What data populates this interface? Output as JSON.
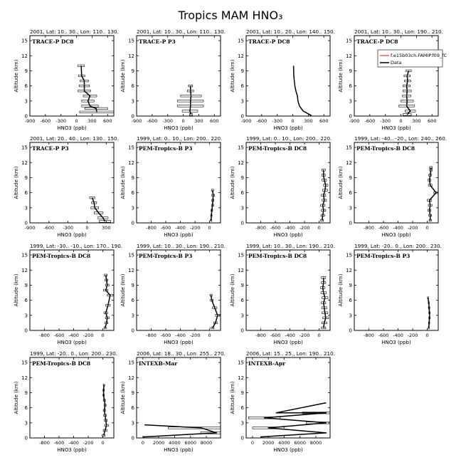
{
  "figure": {
    "title": "Tropics MAM HNO₃"
  },
  "legend": {
    "model_label": "f.e15b03ch.FAMIP.f09_fC",
    "data_label": "Data",
    "model_color": "#ff0000",
    "data_color": "#000000"
  },
  "chart_data": [
    {
      "type": "line",
      "header": "2001, Lat: 10.. 30., Lon: 110.. 130.",
      "campaign": "TRACE-P DC8",
      "xlabel": "HNO3 (ppb)",
      "ylabel": "Altitude (km)",
      "xlim": [
        -900,
        720
      ],
      "ylim": [
        0,
        16
      ],
      "xticks": [
        -900,
        -600,
        -300,
        0,
        300,
        600
      ],
      "yticks": [
        0,
        3,
        6,
        9,
        12,
        15
      ],
      "series": [
        {
          "name": "Data",
          "x": [
            390,
            380,
            260,
            220,
            260,
            150,
            150,
            150,
            100,
            90
          ],
          "y": [
            0.8,
            1.5,
            2.0,
            3.0,
            4.0,
            5.0,
            6.0,
            7.0,
            8.0,
            10.0
          ],
          "xerr": [
            330,
            220,
            160,
            120,
            130,
            120,
            100,
            80,
            60,
            60
          ]
        }
      ]
    },
    {
      "type": "line",
      "header": "2001, Lat: 10.. 30., Lon: 110.. 130.",
      "campaign": "TRACE-P P3",
      "xlabel": "HNO3 (ppb)",
      "ylabel": "Altitude (km)",
      "xlim": [
        -900,
        720
      ],
      "ylim": [
        0,
        16
      ],
      "xticks": [
        -900,
        -600,
        -300,
        0,
        300,
        600
      ],
      "yticks": [
        0,
        3,
        6,
        9,
        12,
        15
      ],
      "series": [
        {
          "name": "Data",
          "x": [
            150,
            130,
            140,
            140,
            150,
            140,
            140
          ],
          "y": [
            0.3,
            1.0,
            2.0,
            3.0,
            4.0,
            5.0,
            6.0
          ],
          "xerr": [
            30,
            150,
            250,
            250,
            200,
            60,
            40
          ]
        }
      ]
    },
    {
      "type": "line",
      "header": "2001, Lat: 10.. 20., Lon: 140.. 150.",
      "campaign": "TRACE-P DC8",
      "xlabel": "HNO3 (ppb)",
      "ylabel": "Altitude (km)",
      "xlim": [
        -900,
        720
      ],
      "ylim": [
        0,
        16
      ],
      "xticks": [
        -900,
        -600,
        -300,
        0,
        300,
        600
      ],
      "yticks": [
        0,
        3,
        6,
        9,
        12,
        15
      ],
      "series": [
        {
          "name": "Data",
          "x": [
            360,
            200,
            130,
            100,
            90,
            60,
            40,
            30,
            20,
            15
          ],
          "y": [
            0.1,
            1.0,
            2.0,
            3.0,
            4.0,
            5.0,
            6.0,
            7.0,
            8.0,
            10.0
          ],
          "xerr": [
            0,
            0,
            0,
            0,
            0,
            0,
            0,
            0,
            0,
            0
          ]
        }
      ]
    },
    {
      "type": "line",
      "header": "2001, Lat: 10.. 30., Lon: 190.. 210.",
      "campaign": "TRACE-P DC8",
      "xlabel": "HNO3 (ppb)",
      "ylabel": "Altitude (km)",
      "xlim": [
        -900,
        720
      ],
      "ylim": [
        0,
        16
      ],
      "xticks": [
        -900,
        -600,
        -300,
        0,
        300,
        600
      ],
      "yticks": [
        0,
        3,
        6,
        9,
        12,
        15
      ],
      "series": [
        {
          "name": "Data",
          "x": [
            120,
            180,
            110,
            120,
            110,
            120,
            110,
            130,
            120,
            150
          ],
          "y": [
            0.3,
            1.0,
            2.0,
            3.0,
            4.0,
            5.0,
            6.0,
            7.0,
            8.0,
            9.0
          ],
          "xerr": [
            80,
            100,
            150,
            120,
            80,
            80,
            70,
            60,
            60,
            50
          ]
        }
      ]
    },
    {
      "type": "line",
      "header": "2001, Lat: 20.. 40., Lon: 130.. 150.",
      "campaign": "TRACE-P P3",
      "xlabel": "HNO3 (ppb)",
      "ylabel": "Altitude (km)",
      "xlim": [
        -900,
        420
      ],
      "ylim": [
        0,
        16
      ],
      "xticks": [
        -900,
        -600,
        -300,
        0,
        300
      ],
      "yticks": [
        0,
        3,
        6,
        9,
        12,
        15
      ],
      "series": [
        {
          "name": "Data",
          "x": [
            280,
            250,
            180,
            120,
            110,
            80
          ],
          "y": [
            0.3,
            1.0,
            2.0,
            3.0,
            4.0,
            5.0
          ],
          "xerr": [
            90,
            80,
            70,
            60,
            40,
            40
          ]
        }
      ]
    },
    {
      "type": "line",
      "header": "1999, Lat: 0.. 10., Lon: 200.. 220.",
      "campaign": "PEM-Tropics-B P3",
      "xlabel": "HNO3 (ppb)",
      "ylabel": "Altitude (km)",
      "xlim": [
        -1000,
        150
      ],
      "ylim": [
        0,
        16
      ],
      "xticks": [
        -800,
        -600,
        -400,
        -200,
        0
      ],
      "yticks": [
        0,
        3,
        6,
        9,
        12,
        15
      ],
      "series": [
        {
          "name": "Data",
          "x": [
            20,
            25,
            30,
            40,
            45,
            50,
            40
          ],
          "y": [
            0.5,
            1.5,
            2.5,
            3.5,
            4.5,
            5.5,
            6.5
          ],
          "xerr": [
            10,
            10,
            12,
            15,
            15,
            20,
            15
          ]
        }
      ]
    },
    {
      "type": "line",
      "header": "1999, Lat: 0.. 10., Lon: 200.. 220.",
      "campaign": "PEM-Tropics-B DC8",
      "xlabel": "HNO3 (ppb)",
      "ylabel": "Altitude (km)",
      "xlim": [
        -1000,
        150
      ],
      "ylim": [
        0,
        16
      ],
      "xticks": [
        -800,
        -600,
        -400,
        -200,
        0
      ],
      "yticks": [
        0,
        3,
        6,
        9,
        12,
        15
      ],
      "series": [
        {
          "name": "Data",
          "x": [
            40,
            50,
            60,
            50,
            70,
            60,
            80,
            90,
            70,
            60,
            60
          ],
          "y": [
            0.5,
            1.5,
            2.5,
            3.5,
            4.5,
            5.5,
            6.5,
            7.5,
            8.5,
            9.5,
            10.5
          ],
          "xerr": [
            20,
            25,
            30,
            30,
            30,
            30,
            35,
            30,
            30,
            25,
            25
          ]
        }
      ]
    },
    {
      "type": "line",
      "header": "1999, Lat: -40.. -20., Lon: 240.. 260.",
      "campaign": "PEM-Tropics-B DC8",
      "xlabel": "HNO3 (ppb)",
      "ylabel": "Altitude (km)",
      "xlim": [
        -1000,
        150
      ],
      "ylim": [
        0,
        16
      ],
      "xticks": [
        -800,
        -600,
        -400,
        -200,
        0
      ],
      "yticks": [
        0,
        3,
        6,
        9,
        12,
        15
      ],
      "series": [
        {
          "name": "Data",
          "x": [
            40,
            40,
            30,
            40,
            30,
            120,
            40,
            30,
            40,
            50,
            50
          ],
          "y": [
            0.5,
            1.5,
            2.5,
            3.5,
            4.5,
            6.0,
            7.5,
            8.5,
            9.5,
            10.5,
            11.0
          ],
          "xerr": [
            15,
            20,
            20,
            25,
            30,
            30,
            25,
            20,
            20,
            20,
            20
          ]
        }
      ]
    },
    {
      "type": "line",
      "header": "1999, Lat: -30.. -10., Lon: 170.. 190.",
      "campaign": "PEM-Tropics-B DC8",
      "xlabel": "HNO3 (ppb)",
      "ylabel": "Altitude (km)",
      "xlim": [
        -1000,
        150
      ],
      "ylim": [
        0,
        16
      ],
      "xticks": [
        -800,
        -600,
        -400,
        -200,
        0
      ],
      "yticks": [
        0,
        3,
        6,
        9,
        12,
        15
      ],
      "series": [
        {
          "name": "Data",
          "x": [
            30,
            50,
            60,
            40,
            70,
            100,
            40,
            60,
            50,
            40
          ],
          "y": [
            0.5,
            1.5,
            2.5,
            3.5,
            5.0,
            7.0,
            8.0,
            9.0,
            10.0,
            11.0
          ],
          "xerr": [
            15,
            20,
            25,
            25,
            30,
            40,
            30,
            25,
            20,
            20
          ]
        }
      ]
    },
    {
      "type": "line",
      "header": "1999, Lat: 10.. 30., Lon: 190.. 210.",
      "campaign": "PEM-Tropics-B P3",
      "xlabel": "HNO3 (ppb)",
      "ylabel": "Altitude (km)",
      "xlim": [
        -1000,
        150
      ],
      "ylim": [
        0,
        16
      ],
      "xticks": [
        -800,
        -600,
        -400,
        -200,
        0
      ],
      "yticks": [
        0,
        3,
        6,
        9,
        12,
        15
      ],
      "series": [
        {
          "name": "Data",
          "x": [
            40,
            80,
            110,
            70,
            30,
            20
          ],
          "y": [
            0.5,
            1.5,
            3.0,
            4.5,
            6.0,
            7.0
          ],
          "xerr": [
            20,
            25,
            30,
            30,
            20,
            15
          ]
        }
      ]
    },
    {
      "type": "line",
      "header": "1999, Lat: 10.. 30., Lon: 190.. 210.",
      "campaign": "PEM-Tropics-B DC8",
      "xlabel": "HNO3 (ppb)",
      "ylabel": "Altitude (km)",
      "xlim": [
        -1000,
        150
      ],
      "ylim": [
        0,
        16
      ],
      "xticks": [
        -800,
        -600,
        -400,
        -200,
        0
      ],
      "yticks": [
        0,
        3,
        6,
        9,
        12,
        15
      ],
      "series": [
        {
          "name": "Data",
          "x": [
            60,
            70,
            90,
            80,
            70,
            60,
            80,
            60,
            50,
            60,
            60
          ],
          "y": [
            0.5,
            1.5,
            2.5,
            3.5,
            4.5,
            5.5,
            6.5,
            7.5,
            8.5,
            9.5,
            10.5
          ],
          "xerr": [
            30,
            35,
            40,
            40,
            35,
            30,
            40,
            35,
            30,
            30,
            30
          ]
        }
      ]
    },
    {
      "type": "line",
      "header": "1999, Lat: -20.. 0., Lon: 200.. 230.",
      "campaign": "PEM-Tropics-B P3",
      "xlabel": "HNO3 (ppb)",
      "ylabel": "Altitude (km)",
      "xlim": [
        -1000,
        150
      ],
      "ylim": [
        0,
        16
      ],
      "xticks": [
        -800,
        -600,
        -400,
        -200,
        0
      ],
      "yticks": [
        0,
        3,
        6,
        9,
        12,
        15
      ],
      "series": [
        {
          "name": "Data",
          "x": [
            20,
            25,
            30,
            30,
            25,
            20,
            10
          ],
          "y": [
            0.5,
            1.5,
            2.5,
            3.5,
            4.5,
            5.5,
            6.5
          ],
          "xerr": [
            8,
            8,
            10,
            10,
            10,
            8,
            8
          ]
        }
      ]
    },
    {
      "type": "line",
      "header": "1999, Lat: -20.. 0., Lon: 200.. 230.",
      "campaign": "PEM-Tropics-B DC8",
      "xlabel": "HNO3 (ppb)",
      "ylabel": "Altitude (km)",
      "xlim": [
        -1000,
        150
      ],
      "ylim": [
        0,
        16
      ],
      "xticks": [
        -800,
        -600,
        -400,
        -200,
        0
      ],
      "yticks": [
        0,
        3,
        6,
        9,
        12,
        15
      ],
      "series": [
        {
          "name": "Data",
          "x": [
            10,
            30,
            50,
            40,
            30,
            20,
            30,
            20,
            10,
            10,
            15
          ],
          "y": [
            0.5,
            1.5,
            2.5,
            3.5,
            4.5,
            5.5,
            6.5,
            7.5,
            8.5,
            9.5,
            10.5
          ],
          "xerr": [
            20,
            25,
            25,
            20,
            20,
            15,
            15,
            15,
            10,
            10,
            10
          ]
        }
      ]
    },
    {
      "type": "line",
      "header": "2006, Lat: 18.. 30., Lon: 255.. 270.",
      "campaign": "INTEXB-Mar",
      "xlabel": "HNO3 (ppb)",
      "ylabel": "Altitude (km)",
      "xlim": [
        -800,
        9800
      ],
      "ylim": [
        0,
        16
      ],
      "xticks": [
        0,
        2000,
        4000,
        6000,
        8000
      ],
      "yticks": [
        0,
        3,
        6,
        9,
        12,
        15
      ],
      "series": [
        {
          "name": "Data",
          "x": [
            0,
            9300,
            7400,
            200
          ],
          "y": [
            0.2,
            1.0,
            2.0,
            2.6
          ],
          "xerr": [
            0,
            2000,
            4200,
            0
          ]
        }
      ]
    },
    {
      "type": "line",
      "header": "2006, Lat: 15.. 25., Lon: 190.. 210.",
      "campaign": "INTEXB-Apr",
      "xlabel": "HNO3 (ppb)",
      "ylabel": "Altitude (km)",
      "xlim": [
        -800,
        9800
      ],
      "ylim": [
        0,
        16
      ],
      "xticks": [
        0,
        2000,
        4000,
        6000,
        8000
      ],
      "yticks": [
        0,
        3,
        6,
        9,
        12,
        15
      ],
      "series": [
        {
          "name": "Data",
          "x": [
            1000,
            9300,
            2000,
            9300,
            1500,
            9300,
            3000,
            9300
          ],
          "y": [
            0.2,
            1.0,
            2.0,
            3.0,
            4.0,
            5.0,
            5.0,
            7.0
          ],
          "xerr": [
            0,
            0,
            2000,
            2500,
            2000,
            3000,
            0,
            0
          ]
        }
      ]
    }
  ]
}
